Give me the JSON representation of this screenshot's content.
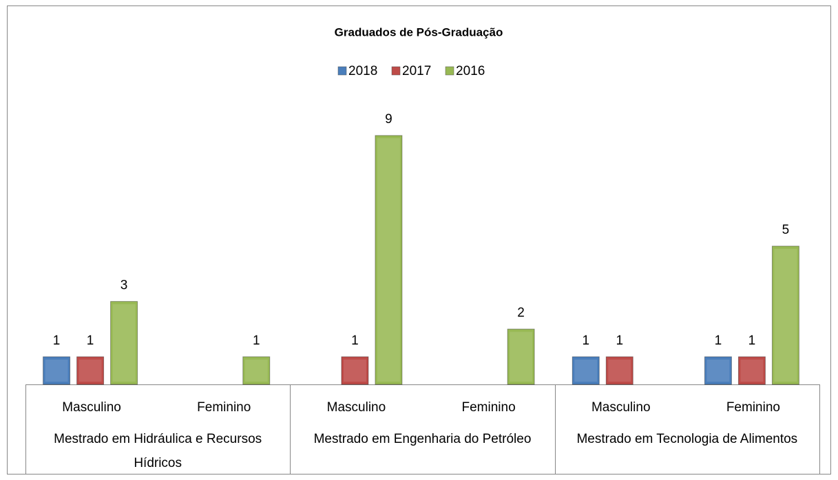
{
  "chart_data": {
    "type": "bar",
    "title": "Graduados de Pós-Graduação",
    "groups": [
      {
        "name": "Mestrado em Hidráulica e Recursos Hídricos",
        "categories": [
          "Masculino",
          "Feminino"
        ]
      },
      {
        "name": "Mestrado em Engenharia do Petróleo",
        "categories": [
          "Masculino",
          "Feminino"
        ]
      },
      {
        "name": "Mestrado em Tecnologia de Alimentos",
        "categories": [
          "Masculino",
          "Feminino"
        ]
      }
    ],
    "series": [
      {
        "name": "2018",
        "color": "#4a7ebb",
        "values": [
          1,
          null,
          null,
          null,
          1,
          1
        ]
      },
      {
        "name": "2017",
        "color": "#be4b48",
        "values": [
          1,
          null,
          1,
          null,
          1,
          1
        ]
      },
      {
        "name": "2016",
        "color": "#98b954",
        "values": [
          3,
          1,
          9,
          2,
          null,
          5
        ]
      }
    ],
    "legend": "top"
  }
}
